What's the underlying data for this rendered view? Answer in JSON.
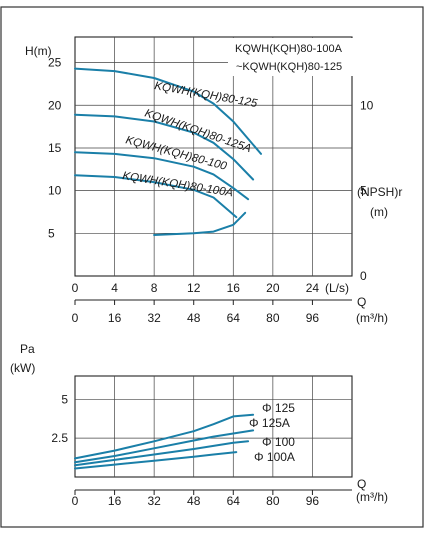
{
  "chart_data": [
    {
      "type": "line",
      "title": "",
      "legend_box": [
        "KQWH(KQH)80-100A",
        "~KQWH(KQH)80-125"
      ],
      "y_left_label": [
        "H(m)"
      ],
      "y_right_label": [
        "(NPSH)r",
        "(m)"
      ],
      "x_label": "Q",
      "x_unit_ls": "(L/s)",
      "x_unit_m3h": "(m³/h)",
      "xlim_ls": [
        0,
        28
      ],
      "ylim_left": [
        0,
        28
      ],
      "ylim_right": [
        0,
        14
      ],
      "x_ticks_ls": [
        "0",
        "4",
        "8",
        "12",
        "16",
        "20",
        "24"
      ],
      "x_ticks_m3h": [
        "0",
        "16",
        "32",
        "48",
        "64",
        "80",
        "96"
      ],
      "y_ticks_left": [
        "5",
        "10",
        "15",
        "20",
        "25"
      ],
      "y_ticks_right": [
        "0",
        "5",
        "10"
      ],
      "grid": true,
      "series": [
        {
          "name": "KQWH(KQH)80-125",
          "axis": "left",
          "x": [
            0,
            4,
            8,
            12,
            14,
            16,
            18.8
          ],
          "y": [
            24.3,
            24.0,
            23.2,
            21.6,
            20.2,
            18.1,
            14.3
          ]
        },
        {
          "name": "KQWH(KQH)80-125A",
          "axis": "left",
          "x": [
            0,
            4,
            8,
            12,
            14,
            16,
            18
          ],
          "y": [
            18.9,
            18.7,
            18.1,
            16.8,
            15.6,
            13.7,
            11.3
          ]
        },
        {
          "name": "KQWH(KQH)80-100",
          "axis": "left",
          "x": [
            0,
            4,
            8,
            12,
            14,
            16,
            17.5
          ],
          "y": [
            14.5,
            14.3,
            13.8,
            12.8,
            11.9,
            10.3,
            9.0
          ]
        },
        {
          "name": "KQWH(KQH)80-100A",
          "axis": "left",
          "x": [
            0,
            4,
            8,
            12,
            14,
            16.3
          ],
          "y": [
            11.8,
            11.6,
            11.0,
            10.1,
            9.2,
            6.9
          ]
        },
        {
          "name": "",
          "axis": "right",
          "x": [
            8,
            12,
            14,
            16,
            17.2
          ],
          "y": [
            2.4,
            2.5,
            2.6,
            3.0,
            3.7
          ]
        }
      ]
    },
    {
      "type": "line",
      "title": "",
      "y_label": [
        "Pa",
        "(kW)"
      ],
      "x_label": "Q",
      "x_unit_m3h": "(m³/h)",
      "xlim_ls": [
        0,
        28
      ],
      "ylim": [
        0,
        6.5
      ],
      "x_ticks_m3h": [
        "0",
        "16",
        "32",
        "48",
        "64",
        "80",
        "96"
      ],
      "y_ticks": [
        "2.5",
        "5"
      ],
      "grid": true,
      "series": [
        {
          "name": "Φ 125",
          "x": [
            0,
            4,
            8,
            12,
            14,
            16,
            18
          ],
          "y": [
            1.2,
            1.7,
            2.3,
            2.95,
            3.4,
            3.9,
            4.0
          ]
        },
        {
          "name": "Φ 125A",
          "x": [
            0,
            4,
            8,
            12,
            14,
            16,
            18
          ],
          "y": [
            0.95,
            1.35,
            1.85,
            2.35,
            2.6,
            2.8,
            3.0
          ]
        },
        {
          "name": "Φ 100",
          "x": [
            0,
            4,
            8,
            12,
            14,
            16,
            17.5
          ],
          "y": [
            0.75,
            1.1,
            1.45,
            1.8,
            2.0,
            2.2,
            2.3
          ]
        },
        {
          "name": "Φ 100A",
          "x": [
            0,
            4,
            8,
            12,
            14,
            16.3
          ],
          "y": [
            0.55,
            0.8,
            1.05,
            1.3,
            1.45,
            1.6
          ]
        }
      ]
    }
  ],
  "colors": {
    "curve": "#1a7fa8",
    "axis": "#222222",
    "grid": "#444444",
    "border": "#333333"
  }
}
